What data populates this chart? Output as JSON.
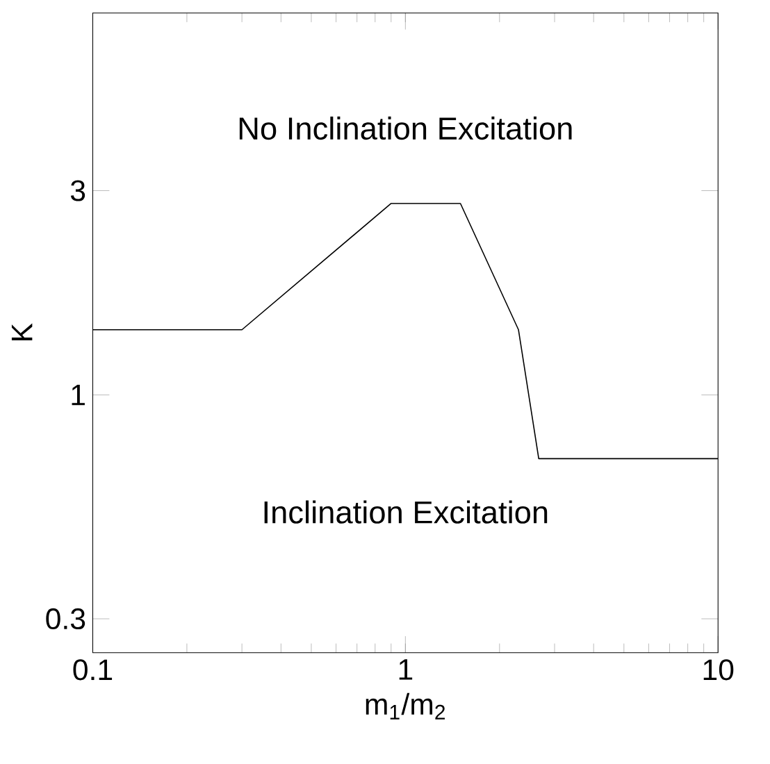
{
  "chart_data": {
    "type": "line",
    "xlabel": "m$_{1}$/m$_{2}$",
    "ylabel": "K",
    "x": [
      0.1,
      0.3,
      0.9,
      1.5,
      2.3,
      2.67,
      10
    ],
    "series": [
      {
        "color": "#000000",
        "values": [
          1.42,
          1.42,
          2.8,
          2.8,
          1.42,
          0.71,
          0.71
        ]
      }
    ],
    "log": "xy",
    "xlim": [
      0.1,
      10
    ],
    "ylim": [
      0.25,
      7.8
    ],
    "xticks": [
      0.1,
      1,
      10
    ],
    "yticks": [
      0.3,
      1,
      3
    ],
    "annotations": [
      "No Inclination Excitation",
      "Inclination Excitation"
    ],
    "grid": false,
    "marker": "none",
    "line_style": "solid"
  }
}
